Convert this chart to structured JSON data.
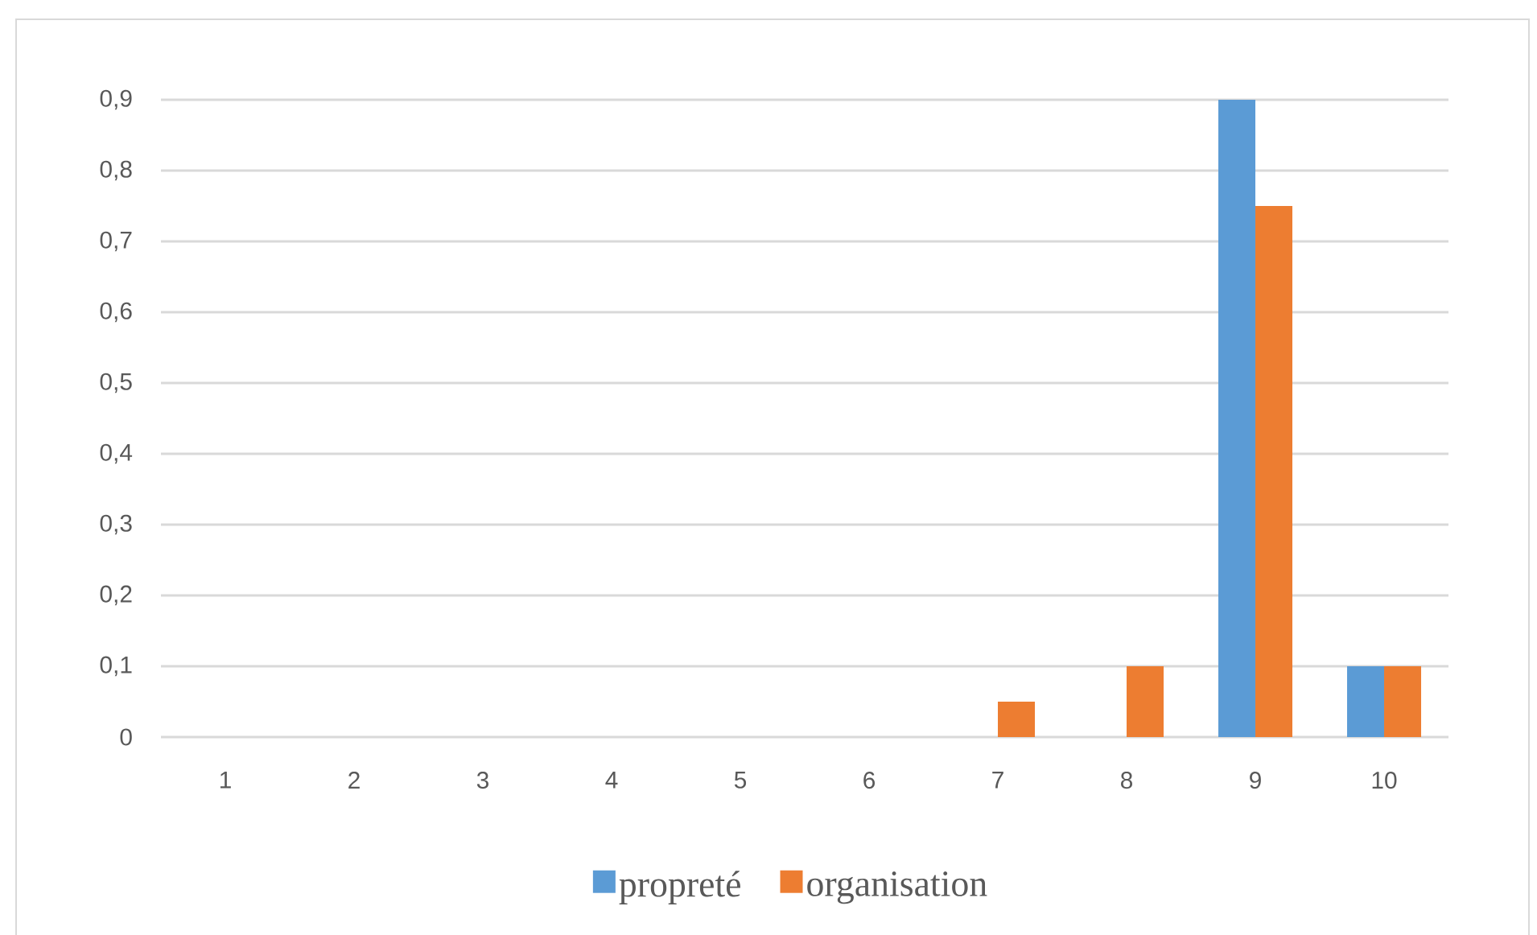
{
  "chart_data": {
    "type": "bar",
    "categories": [
      "1",
      "2",
      "3",
      "4",
      "5",
      "6",
      "7",
      "8",
      "9",
      "10"
    ],
    "series": [
      {
        "name": "propreté",
        "color": "#5b9bd5",
        "values": [
          0,
          0,
          0,
          0,
          0,
          0,
          0,
          0,
          0.9,
          0.1
        ]
      },
      {
        "name": "organisation",
        "color": "#ed7d31",
        "values": [
          0,
          0,
          0,
          0,
          0,
          0,
          0.05,
          0.1,
          0.75,
          0.1
        ]
      }
    ],
    "ylim": [
      0,
      0.9
    ],
    "yticks": [
      0,
      {
        "value": 0.1,
        "label": "0,1"
      },
      {
        "value": 0.2,
        "label": "0,2"
      },
      {
        "value": 0.3,
        "label": "0,3"
      },
      {
        "value": 0.4,
        "label": "0,4"
      },
      {
        "value": 0.5,
        "label": "0,5"
      },
      {
        "value": 0.6,
        "label": "0,6"
      },
      {
        "value": 0.7,
        "label": "0,7"
      },
      {
        "value": 0.8,
        "label": "0,8"
      },
      {
        "value": 0.9,
        "label": "0,9"
      }
    ],
    "grid": "y",
    "legend": "bottom"
  }
}
